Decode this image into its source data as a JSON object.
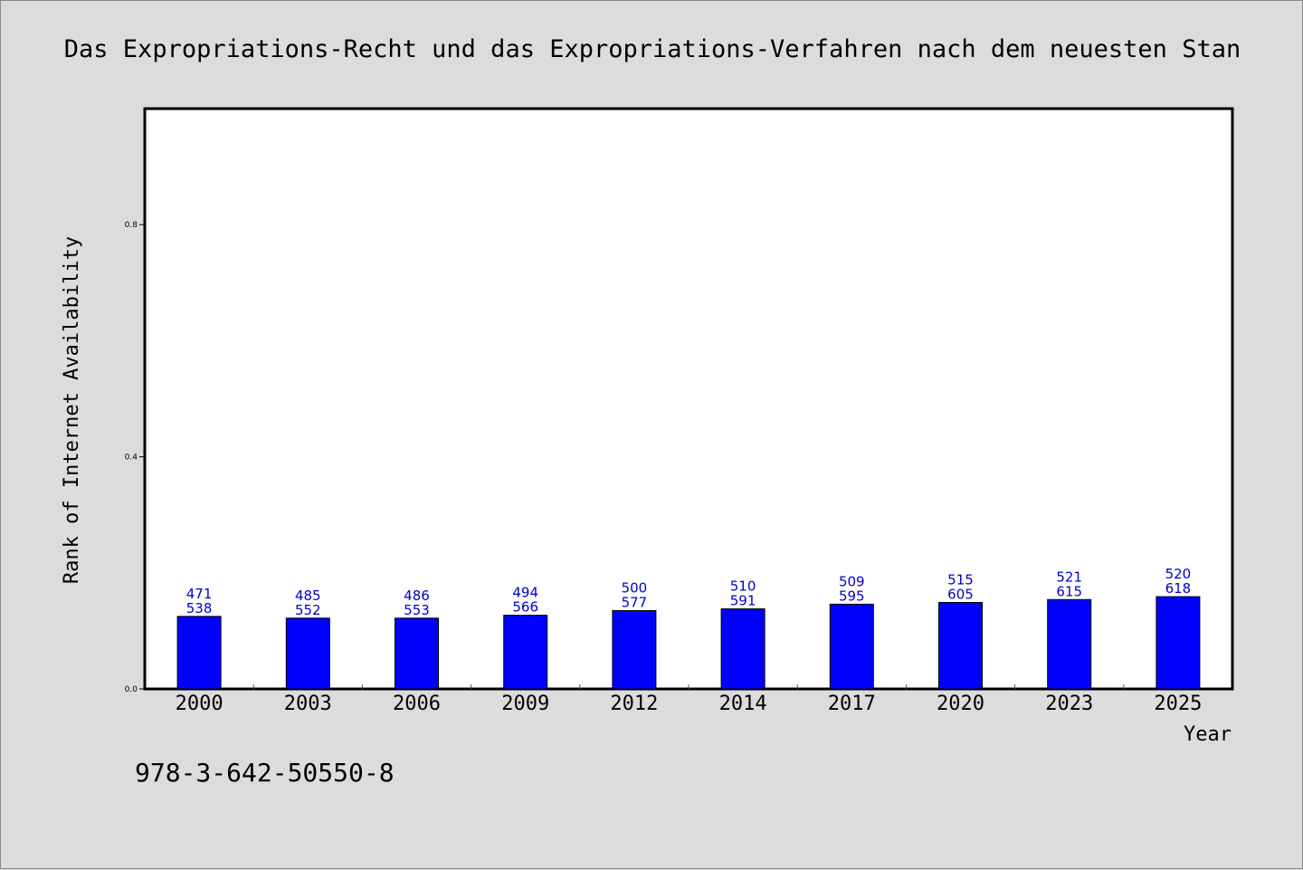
{
  "colors": {
    "background": "#dcdcdc",
    "plot_background": "#ffffff",
    "bar": "#0000ff",
    "label": "#0000cc"
  },
  "footer": {
    "isbn": "978-3-642-50550-8"
  },
  "chart_data": {
    "type": "bar",
    "title": "Das Expropriations-Recht und das Expropriations-Verfahren nach dem neuesten Stan",
    "xlabel": "Year",
    "ylabel": "Rank of Internet Availability",
    "ylim": [
      0,
      1.0
    ],
    "yticks": [
      0.0,
      0.4,
      0.8
    ],
    "ytick_labels": [
      "0.0",
      "0.4",
      "0.8"
    ],
    "grid": false,
    "categories": [
      "2000",
      "2003",
      "2006",
      "2009",
      "2012",
      "2014",
      "2017",
      "2020",
      "2023",
      "2025"
    ],
    "values": [
      0.125,
      0.122,
      0.122,
      0.127,
      0.135,
      0.138,
      0.146,
      0.149,
      0.154,
      0.159
    ],
    "labels_top": [
      "471",
      "485",
      "486",
      "494",
      "500",
      "510",
      "509",
      "515",
      "521",
      "520"
    ],
    "labels_bottom": [
      "538",
      "552",
      "553",
      "566",
      "577",
      "591",
      "595",
      "605",
      "615",
      "618"
    ]
  }
}
